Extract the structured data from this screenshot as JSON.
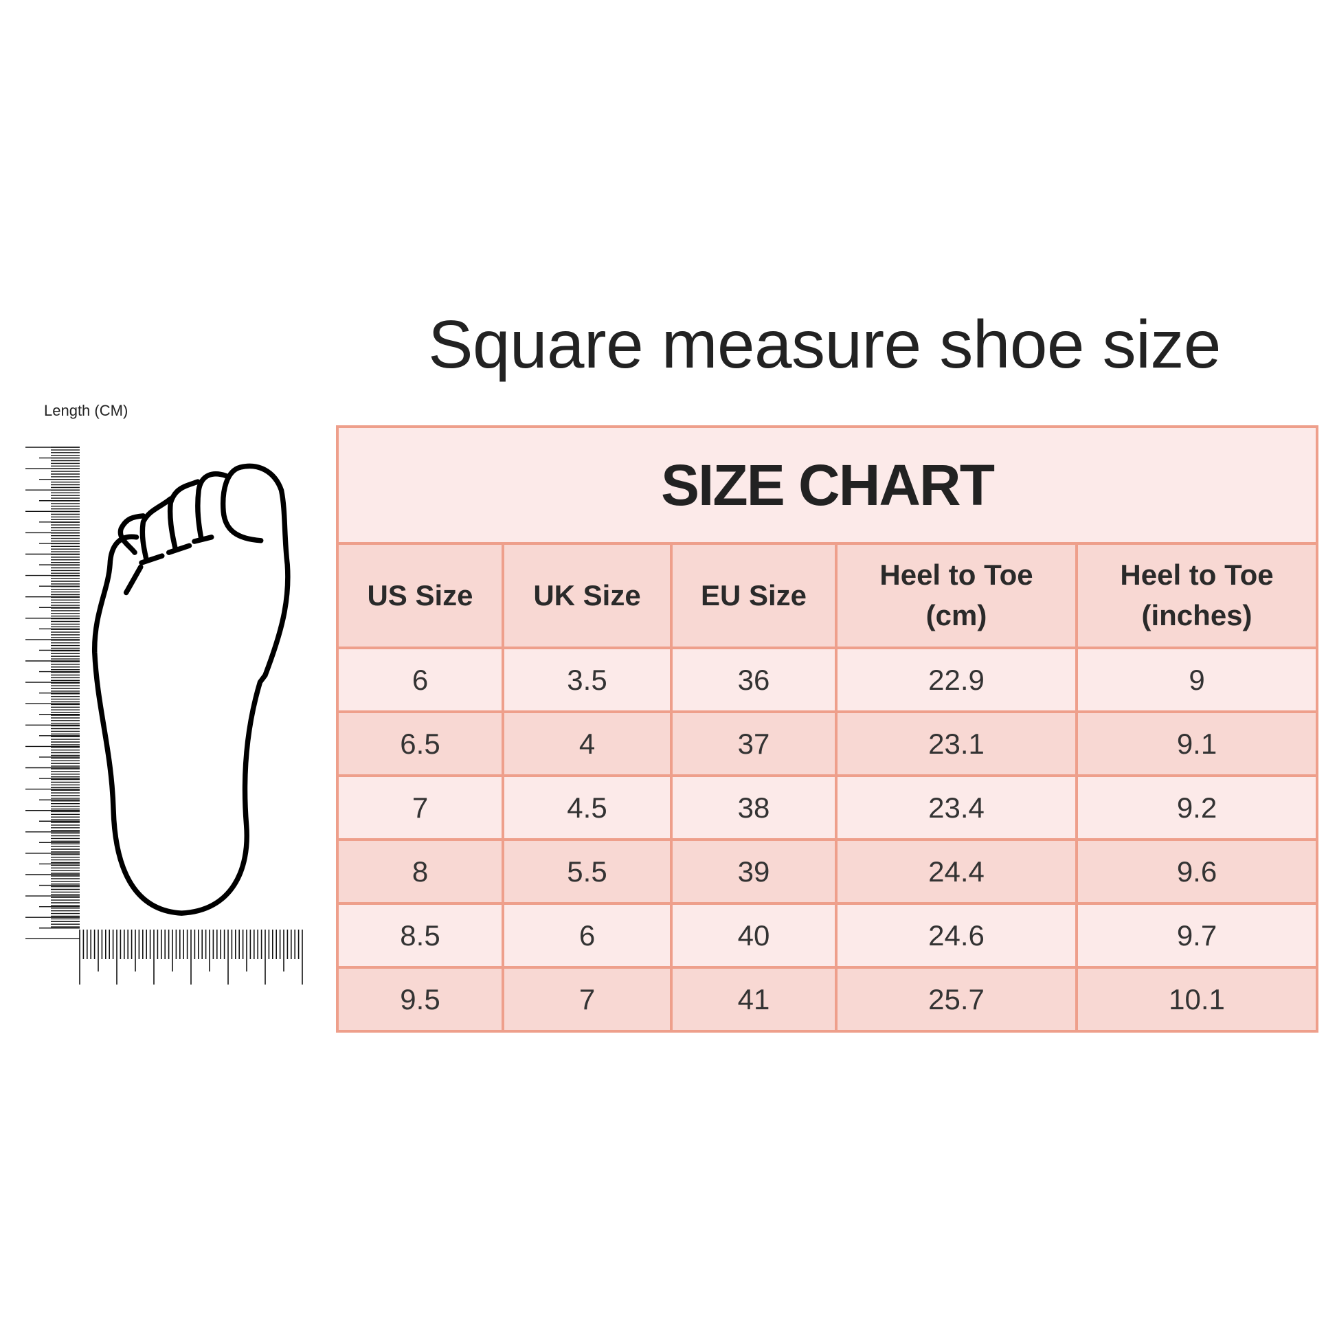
{
  "title": "Square measure shoe size",
  "ruler_label": "Length (CM)",
  "chart": {
    "heading": "SIZE CHART",
    "columns": [
      "US Size",
      "UK Size",
      "EU Size",
      "Heel to Toe (cm)",
      "Heel to Toe (inches)"
    ],
    "column_lines": [
      [
        "US Size"
      ],
      [
        "UK Size"
      ],
      [
        "EU Size"
      ],
      [
        "Heel to Toe",
        "(cm)"
      ],
      [
        "Heel to Toe",
        "(inches)"
      ]
    ],
    "rows": [
      [
        "6",
        "3.5",
        "36",
        "22.9",
        "9"
      ],
      [
        "6.5",
        "4",
        "37",
        "23.1",
        "9.1"
      ],
      [
        "7",
        "4.5",
        "38",
        "23.4",
        "9.2"
      ],
      [
        "8",
        "5.5",
        "39",
        "24.4",
        "9.6"
      ],
      [
        "8.5",
        "6",
        "40",
        "24.6",
        "9.7"
      ],
      [
        "9.5",
        "7",
        "41",
        "25.7",
        "10.1"
      ]
    ]
  },
  "colors": {
    "border": "#ee9f8b",
    "row_light": "#fceae9",
    "row_dark": "#f8d8d3",
    "text": "#222222"
  },
  "icons": {
    "foot": "foot-outline-icon",
    "ruler": "ruler-icon"
  }
}
